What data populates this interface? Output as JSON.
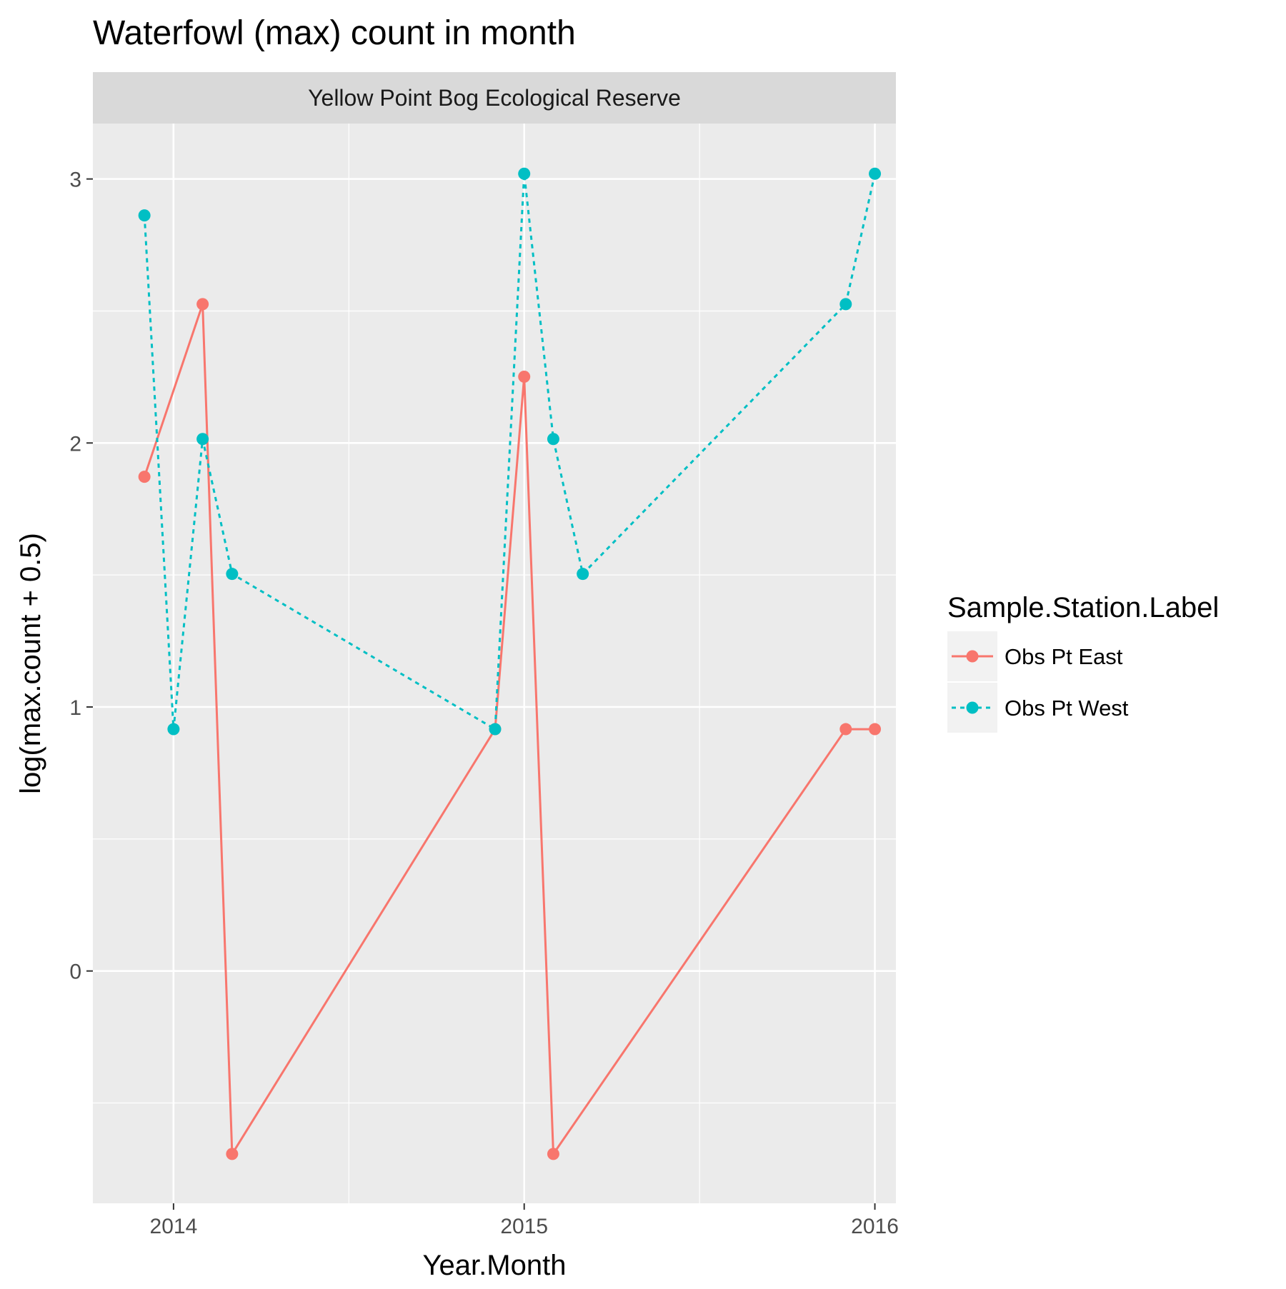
{
  "chart_data": {
    "type": "line",
    "title": "Waterfowl (max) count in month",
    "facet_label": "Yellow Point Bog Ecological Reserve",
    "xlabel": "Year.Month",
    "ylabel": "log(max.count + 0.5)",
    "xlim": [
      2013.77,
      2016.06
    ],
    "ylim": [
      -0.88,
      3.21
    ],
    "x_ticks": [
      2014,
      2015,
      2016
    ],
    "x_tick_labels": [
      "2014",
      "2015",
      "2016"
    ],
    "y_ticks": [
      0,
      1,
      2,
      3
    ],
    "y_tick_labels": [
      "0",
      "1",
      "2",
      "3"
    ],
    "grid": true,
    "legend": {
      "title": "Sample.Station.Label",
      "placement": "right"
    },
    "series": [
      {
        "name": "Obs Pt East",
        "color": "#F8766D",
        "line_style": "solid",
        "x": [
          2013.917,
          2014.083,
          2014.167,
          2014.917,
          2015.0,
          2015.083,
          2015.917,
          2016.0
        ],
        "y": [
          1.872,
          2.526,
          -0.693,
          0.916,
          2.251,
          -0.693,
          0.916,
          0.916
        ]
      },
      {
        "name": "Obs Pt West",
        "color": "#00BFC4",
        "line_style": "dashed",
        "x": [
          2013.917,
          2014.0,
          2014.083,
          2014.167,
          2014.917,
          2015.0,
          2015.083,
          2015.167,
          2015.917,
          2016.0
        ],
        "y": [
          2.862,
          0.916,
          2.015,
          1.504,
          0.916,
          3.02,
          2.015,
          1.504,
          2.526,
          3.02
        ]
      }
    ]
  }
}
